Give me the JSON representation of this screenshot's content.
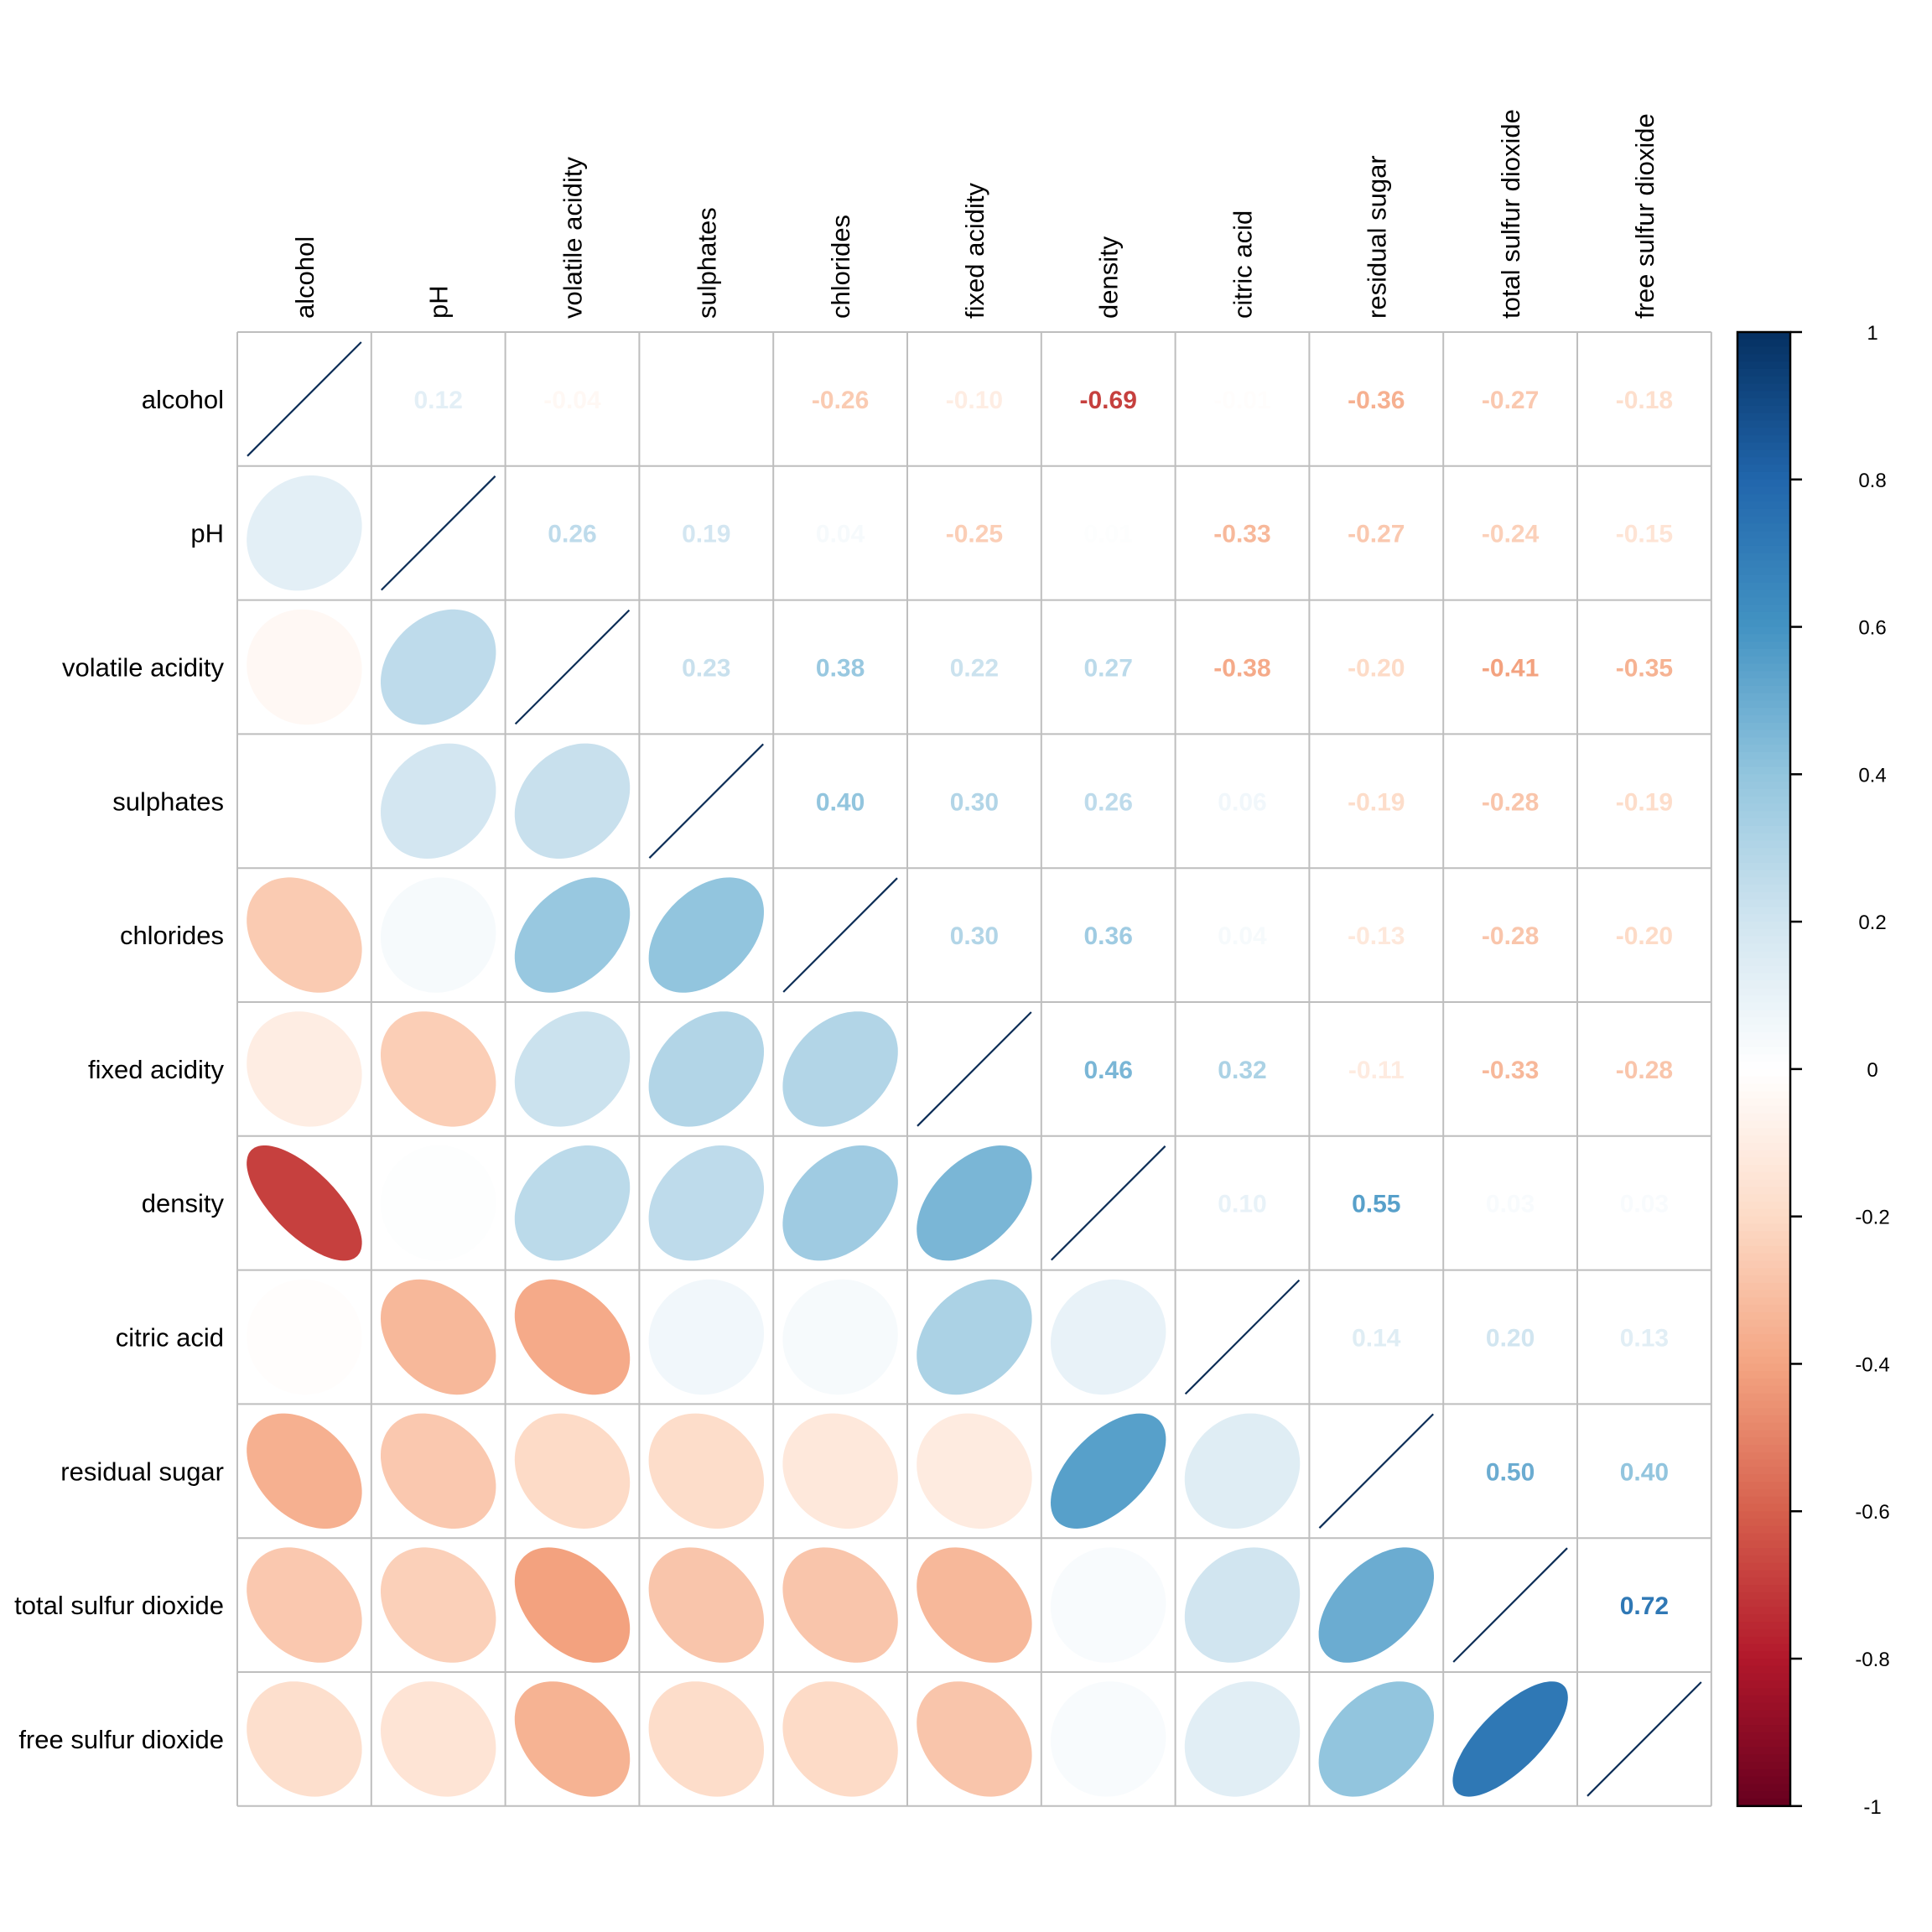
{
  "chart_data": {
    "type": "heatmap",
    "subtype": "correlation-matrix (mixed: lower=ellipse, upper=number, diagonal=line)",
    "title": "",
    "variables": [
      "alcohol",
      "pH",
      "volatile acidity",
      "sulphates",
      "chlorides",
      "fixed acidity",
      "density",
      "citric acid",
      "residual sugar",
      "total sulfur dioxide",
      "free sulfur dioxide"
    ],
    "matrix": [
      [
        1.0,
        0.12,
        -0.04,
        0.0,
        -0.26,
        -0.1,
        -0.69,
        -0.01,
        -0.36,
        -0.27,
        -0.18
      ],
      [
        0.12,
        1.0,
        0.26,
        0.19,
        0.04,
        -0.25,
        0.01,
        -0.33,
        -0.27,
        -0.24,
        -0.15
      ],
      [
        -0.04,
        0.26,
        1.0,
        0.23,
        0.38,
        0.22,
        0.27,
        -0.38,
        -0.2,
        -0.41,
        -0.35
      ],
      [
        0.0,
        0.19,
        0.23,
        1.0,
        0.4,
        0.3,
        0.26,
        0.06,
        -0.19,
        -0.28,
        -0.19
      ],
      [
        -0.26,
        0.04,
        0.38,
        0.4,
        1.0,
        0.3,
        0.36,
        0.04,
        -0.13,
        -0.28,
        -0.2
      ],
      [
        -0.1,
        -0.25,
        0.22,
        0.3,
        0.3,
        1.0,
        0.46,
        0.32,
        -0.11,
        -0.33,
        -0.28
      ],
      [
        -0.69,
        0.01,
        0.27,
        0.26,
        0.36,
        0.46,
        1.0,
        0.1,
        0.55,
        0.03,
        0.03
      ],
      [
        -0.01,
        -0.33,
        -0.38,
        0.06,
        0.04,
        0.32,
        0.1,
        1.0,
        0.14,
        0.2,
        0.13
      ],
      [
        -0.36,
        -0.27,
        -0.2,
        -0.19,
        -0.13,
        -0.11,
        0.55,
        0.14,
        1.0,
        0.5,
        0.4
      ],
      [
        -0.27,
        -0.24,
        -0.41,
        -0.28,
        -0.28,
        -0.33,
        0.03,
        0.2,
        0.5,
        1.0,
        0.72
      ],
      [
        -0.18,
        -0.15,
        -0.35,
        -0.19,
        -0.2,
        -0.28,
        0.03,
        0.13,
        0.4,
        0.72,
        1.0
      ]
    ],
    "lower_method": "ellipse",
    "upper_method": "number",
    "diagonal_method": "line",
    "colorbar": {
      "range": [
        -1,
        1
      ],
      "ticks": [
        "1",
        "0.8",
        "0.6",
        "0.4",
        "0.2",
        "0",
        "-0.2",
        "-0.4",
        "-0.6",
        "-0.8",
        "-1"
      ],
      "tick_values": [
        1,
        0.8,
        0.6,
        0.4,
        0.2,
        0,
        -0.2,
        -0.4,
        -0.6,
        -0.8,
        -1
      ],
      "placement": "right"
    },
    "palette": [
      "#67001F",
      "#B2182B",
      "#D6604D",
      "#F4A582",
      "#FDDBC7",
      "#FFFFFF",
      "#D1E5F0",
      "#92C5DE",
      "#4393C3",
      "#2166AC",
      "#053061"
    ],
    "grid_color": "#BEBEBE",
    "diagonal_line_color": "#0D2E57"
  }
}
